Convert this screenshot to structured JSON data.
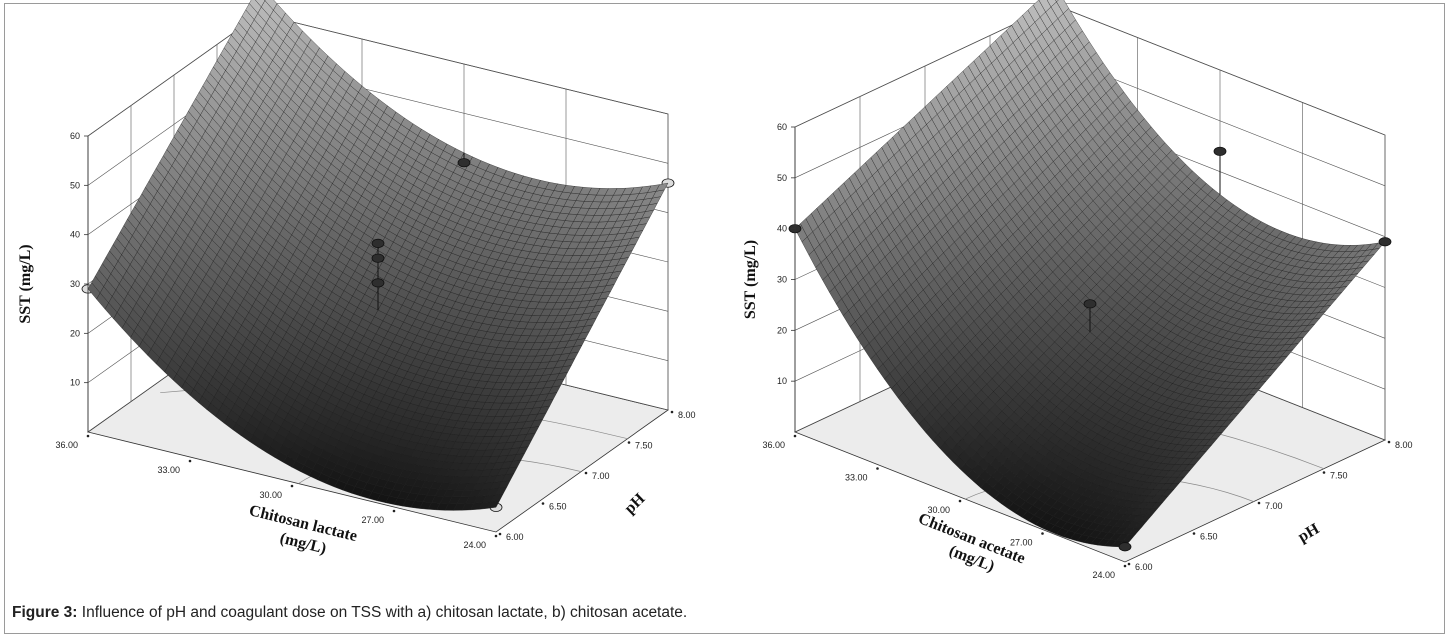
{
  "caption": {
    "label": "Figure 3:",
    "text": "Influence of pH and coagulant dose on TSS with a) chitosan lactate, b) chitosan acetate."
  },
  "colors": {
    "surface_dark": "#0c0c0c",
    "surface_light": "#bdbdbd",
    "floor": "#ececec",
    "grid": "#555555",
    "point_dark": "#2e2e2e",
    "point_light": "#e2e2e2"
  },
  "chart_data": [
    {
      "type": "surface3d",
      "panel": "a",
      "zlabel": "SST (mg/L)",
      "xlabel": "Chitosan lactate (mg/L)",
      "ylabel": "pH",
      "x_ticks": [
        "24.00",
        "27.00",
        "30.00",
        "33.00",
        "36.00"
      ],
      "y_ticks": [
        "6.00",
        "6.50",
        "7.00",
        "7.50",
        "8.00"
      ],
      "z_ticks": [
        "10",
        "20",
        "30",
        "40",
        "50",
        "60"
      ],
      "x_range": [
        24,
        36
      ],
      "y_range": [
        6,
        8
      ],
      "z_range": [
        0,
        60
      ],
      "surface_corners": {
        "x24_pH6": 5,
        "x24_pH8": 46,
        "x36_pH6": 29,
        "x36_pH8": 66
      },
      "surface_curvature": 14,
      "design_points": [
        {
          "x": 36,
          "y": 8,
          "z": 66,
          "above": true
        },
        {
          "x": 24,
          "y": 8,
          "z": 46,
          "above": false
        },
        {
          "x": 36,
          "y": 6,
          "z": 29,
          "above": false
        },
        {
          "x": 24,
          "y": 6,
          "z": 5,
          "above": false
        },
        {
          "x": 30,
          "y": 7,
          "z": 36,
          "above": true
        },
        {
          "x": 30,
          "y": 7,
          "z": 33,
          "above": true
        },
        {
          "x": 30,
          "y": 7,
          "z": 28,
          "above": true
        },
        {
          "x": 30,
          "y": 8,
          "z": 40,
          "above": true
        },
        {
          "x": 30,
          "y": 6,
          "z": 6,
          "above": false
        }
      ]
    },
    {
      "type": "surface3d",
      "panel": "b",
      "zlabel": "SST (mg/L)",
      "xlabel": "Chitosan acetate (mg/L)",
      "ylabel": "pH",
      "x_ticks": [
        "24.00",
        "27.00",
        "30.00",
        "33.00",
        "36.00"
      ],
      "y_ticks": [
        "6.00",
        "6.50",
        "7.00",
        "7.50",
        "8.00"
      ],
      "z_ticks": [
        "10",
        "20",
        "30",
        "40",
        "50",
        "60"
      ],
      "x_range": [
        24,
        36
      ],
      "y_range": [
        6,
        8
      ],
      "z_range": [
        0,
        60
      ],
      "surface_corners": {
        "x24_pH6": 3,
        "x24_pH8": 39,
        "x36_pH6": 40,
        "x36_pH8": 64
      },
      "surface_curvature": 16,
      "design_points": [
        {
          "x": 36,
          "y": 8,
          "z": 64,
          "above": true
        },
        {
          "x": 24,
          "y": 8,
          "z": 39,
          "above": true
        },
        {
          "x": 36,
          "y": 6,
          "z": 40,
          "above": true
        },
        {
          "x": 24,
          "y": 6,
          "z": 3,
          "above": true
        },
        {
          "x": 30,
          "y": 7,
          "z": 26,
          "above": true
        },
        {
          "x": 30,
          "y": 8,
          "z": 44,
          "above": true
        },
        {
          "x": 30,
          "y": 6,
          "z": 12,
          "above": false
        },
        {
          "x": 36,
          "y": 7,
          "z": 48,
          "above": false
        }
      ]
    }
  ]
}
